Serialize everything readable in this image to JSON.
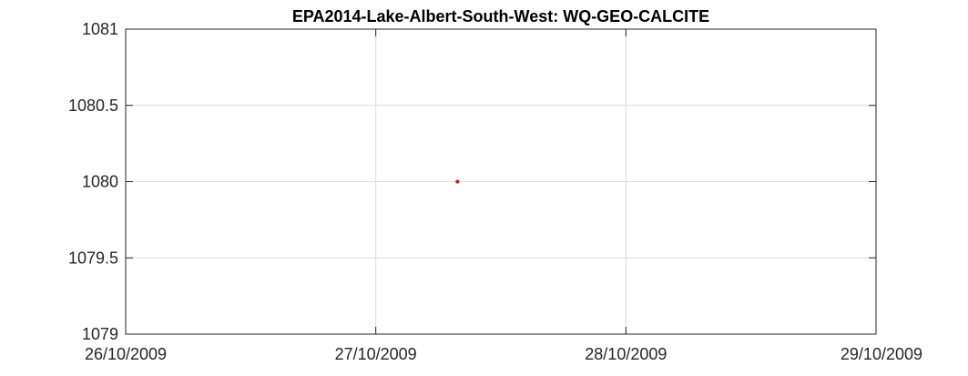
{
  "chart_data": {
    "type": "scatter",
    "title": "EPA2014-Lake-Albert-South-West: WQ-GEO-CALCITE",
    "xlabel": "",
    "ylabel": "",
    "x_type": "date",
    "xlim": [
      "26/10/2009",
      "29/10/2009"
    ],
    "ylim": [
      1079,
      1081
    ],
    "x_ticks": [
      "26/10/2009",
      "27/10/2009",
      "28/10/2009",
      "29/10/2009"
    ],
    "y_ticks": [
      "1081",
      "1080.5",
      "1080",
      "1079.5",
      "1079"
    ],
    "grid": true,
    "legend": "none",
    "series": [
      {
        "color": "#ff0000",
        "points": [
          {
            "x": "27/10/2009 07:50",
            "y": 1080
          }
        ]
      }
    ]
  }
}
